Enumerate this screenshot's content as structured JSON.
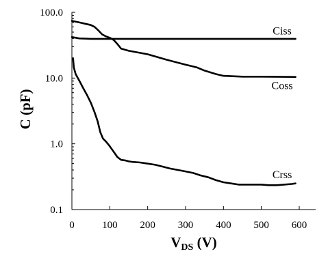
{
  "chart_data": {
    "type": "line",
    "xlabel": "V",
    "xlabel_sub": "DS",
    "xlabel_unit": " (V)",
    "ylabel": "C (pF)",
    "xlim": [
      0,
      600
    ],
    "ylim": [
      0.1,
      100
    ],
    "yscale": "log",
    "grid": false,
    "x_ticks": [
      {
        "value": 0,
        "label": "0"
      },
      {
        "value": 100,
        "label": "100"
      },
      {
        "value": 200,
        "label": "200"
      },
      {
        "value": 300,
        "label": "300"
      },
      {
        "value": 400,
        "label": "400"
      },
      {
        "value": 500,
        "label": "500"
      },
      {
        "value": 600,
        "label": "600"
      }
    ],
    "y_ticks": [
      {
        "value": 0.1,
        "label": "0.1"
      },
      {
        "value": 1,
        "label": "1.0"
      },
      {
        "value": 10,
        "label": "10.0"
      },
      {
        "value": 100,
        "label": "100.0"
      }
    ],
    "series": [
      {
        "name": "Ciss",
        "label_at": {
          "x": 555,
          "y": 46
        },
        "points": [
          [
            0,
            42
          ],
          [
            20,
            40
          ],
          [
            50,
            39.5
          ],
          [
            100,
            39.5
          ],
          [
            200,
            39.5
          ],
          [
            300,
            39.5
          ],
          [
            400,
            39.5
          ],
          [
            500,
            39.5
          ],
          [
            590,
            39.5
          ]
        ]
      },
      {
        "name": "Coss",
        "label_at": {
          "x": 555,
          "y": 6.8
        },
        "points": [
          [
            0,
            74
          ],
          [
            20,
            70
          ],
          [
            50,
            64
          ],
          [
            60,
            60
          ],
          [
            70,
            53
          ],
          [
            80,
            46
          ],
          [
            90,
            43
          ],
          [
            100,
            41
          ],
          [
            110,
            38
          ],
          [
            120,
            33
          ],
          [
            130,
            28
          ],
          [
            150,
            26
          ],
          [
            200,
            23
          ],
          [
            250,
            19
          ],
          [
            300,
            16
          ],
          [
            330,
            14.5
          ],
          [
            350,
            13
          ],
          [
            380,
            11.5
          ],
          [
            400,
            10.8
          ],
          [
            450,
            10.5
          ],
          [
            500,
            10.5
          ],
          [
            590,
            10.4
          ]
        ]
      },
      {
        "name": "Crss",
        "label_at": {
          "x": 555,
          "y": 0.3
        },
        "points": [
          [
            3,
            20
          ],
          [
            5,
            14.5
          ],
          [
            10,
            11.5
          ],
          [
            20,
            9
          ],
          [
            30,
            7
          ],
          [
            40,
            5.5
          ],
          [
            50,
            4.2
          ],
          [
            60,
            3
          ],
          [
            68,
            2.2
          ],
          [
            75,
            1.5
          ],
          [
            82,
            1.2
          ],
          [
            90,
            1.08
          ],
          [
            100,
            0.92
          ],
          [
            110,
            0.76
          ],
          [
            120,
            0.63
          ],
          [
            130,
            0.57
          ],
          [
            140,
            0.56
          ],
          [
            150,
            0.54
          ],
          [
            160,
            0.53
          ],
          [
            180,
            0.52
          ],
          [
            200,
            0.5
          ],
          [
            220,
            0.48
          ],
          [
            240,
            0.45
          ],
          [
            260,
            0.42
          ],
          [
            280,
            0.4
          ],
          [
            300,
            0.38
          ],
          [
            320,
            0.36
          ],
          [
            340,
            0.33
          ],
          [
            360,
            0.31
          ],
          [
            380,
            0.28
          ],
          [
            400,
            0.26
          ],
          [
            420,
            0.25
          ],
          [
            440,
            0.24
          ],
          [
            460,
            0.24
          ],
          [
            480,
            0.24
          ],
          [
            500,
            0.24
          ],
          [
            520,
            0.235
          ],
          [
            540,
            0.235
          ],
          [
            560,
            0.24
          ],
          [
            580,
            0.245
          ],
          [
            590,
            0.25
          ]
        ]
      }
    ]
  }
}
